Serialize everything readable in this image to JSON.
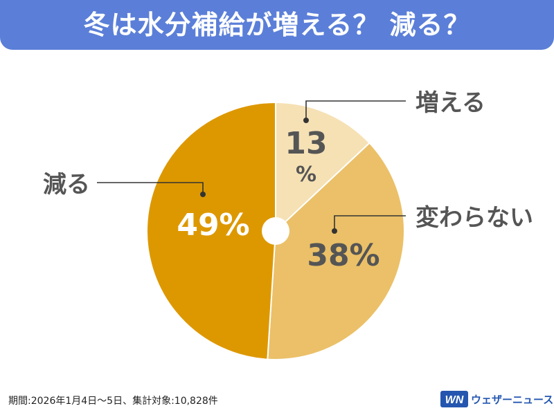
{
  "title": "冬は水分補給が増える？ 減る？",
  "footnote": "期間:2026年1月4日〜5日、集計対象:10,828件",
  "logo": {
    "name": "ウェザーニュース",
    "mark_text": "WN"
  },
  "colors": {
    "title_bar": "#5b7fd8",
    "increase": "#f6e1b5",
    "same": "#ebc068",
    "decrease": "#dd9800",
    "label_text": "#555555",
    "logo_blue": "#2456b0"
  },
  "chart_data": {
    "type": "pie",
    "start": "12 o'clock",
    "direction": "clockwise",
    "donut_hole": true,
    "slices": [
      {
        "label": "増える",
        "value": 13,
        "percent_text": "13%",
        "color": "#f6e1b5"
      },
      {
        "label": "変わらない",
        "value": 38,
        "percent_text": "38%",
        "color": "#ebc068"
      },
      {
        "label": "減る",
        "value": 49,
        "percent_text": "49%",
        "color": "#dd9800"
      }
    ]
  }
}
